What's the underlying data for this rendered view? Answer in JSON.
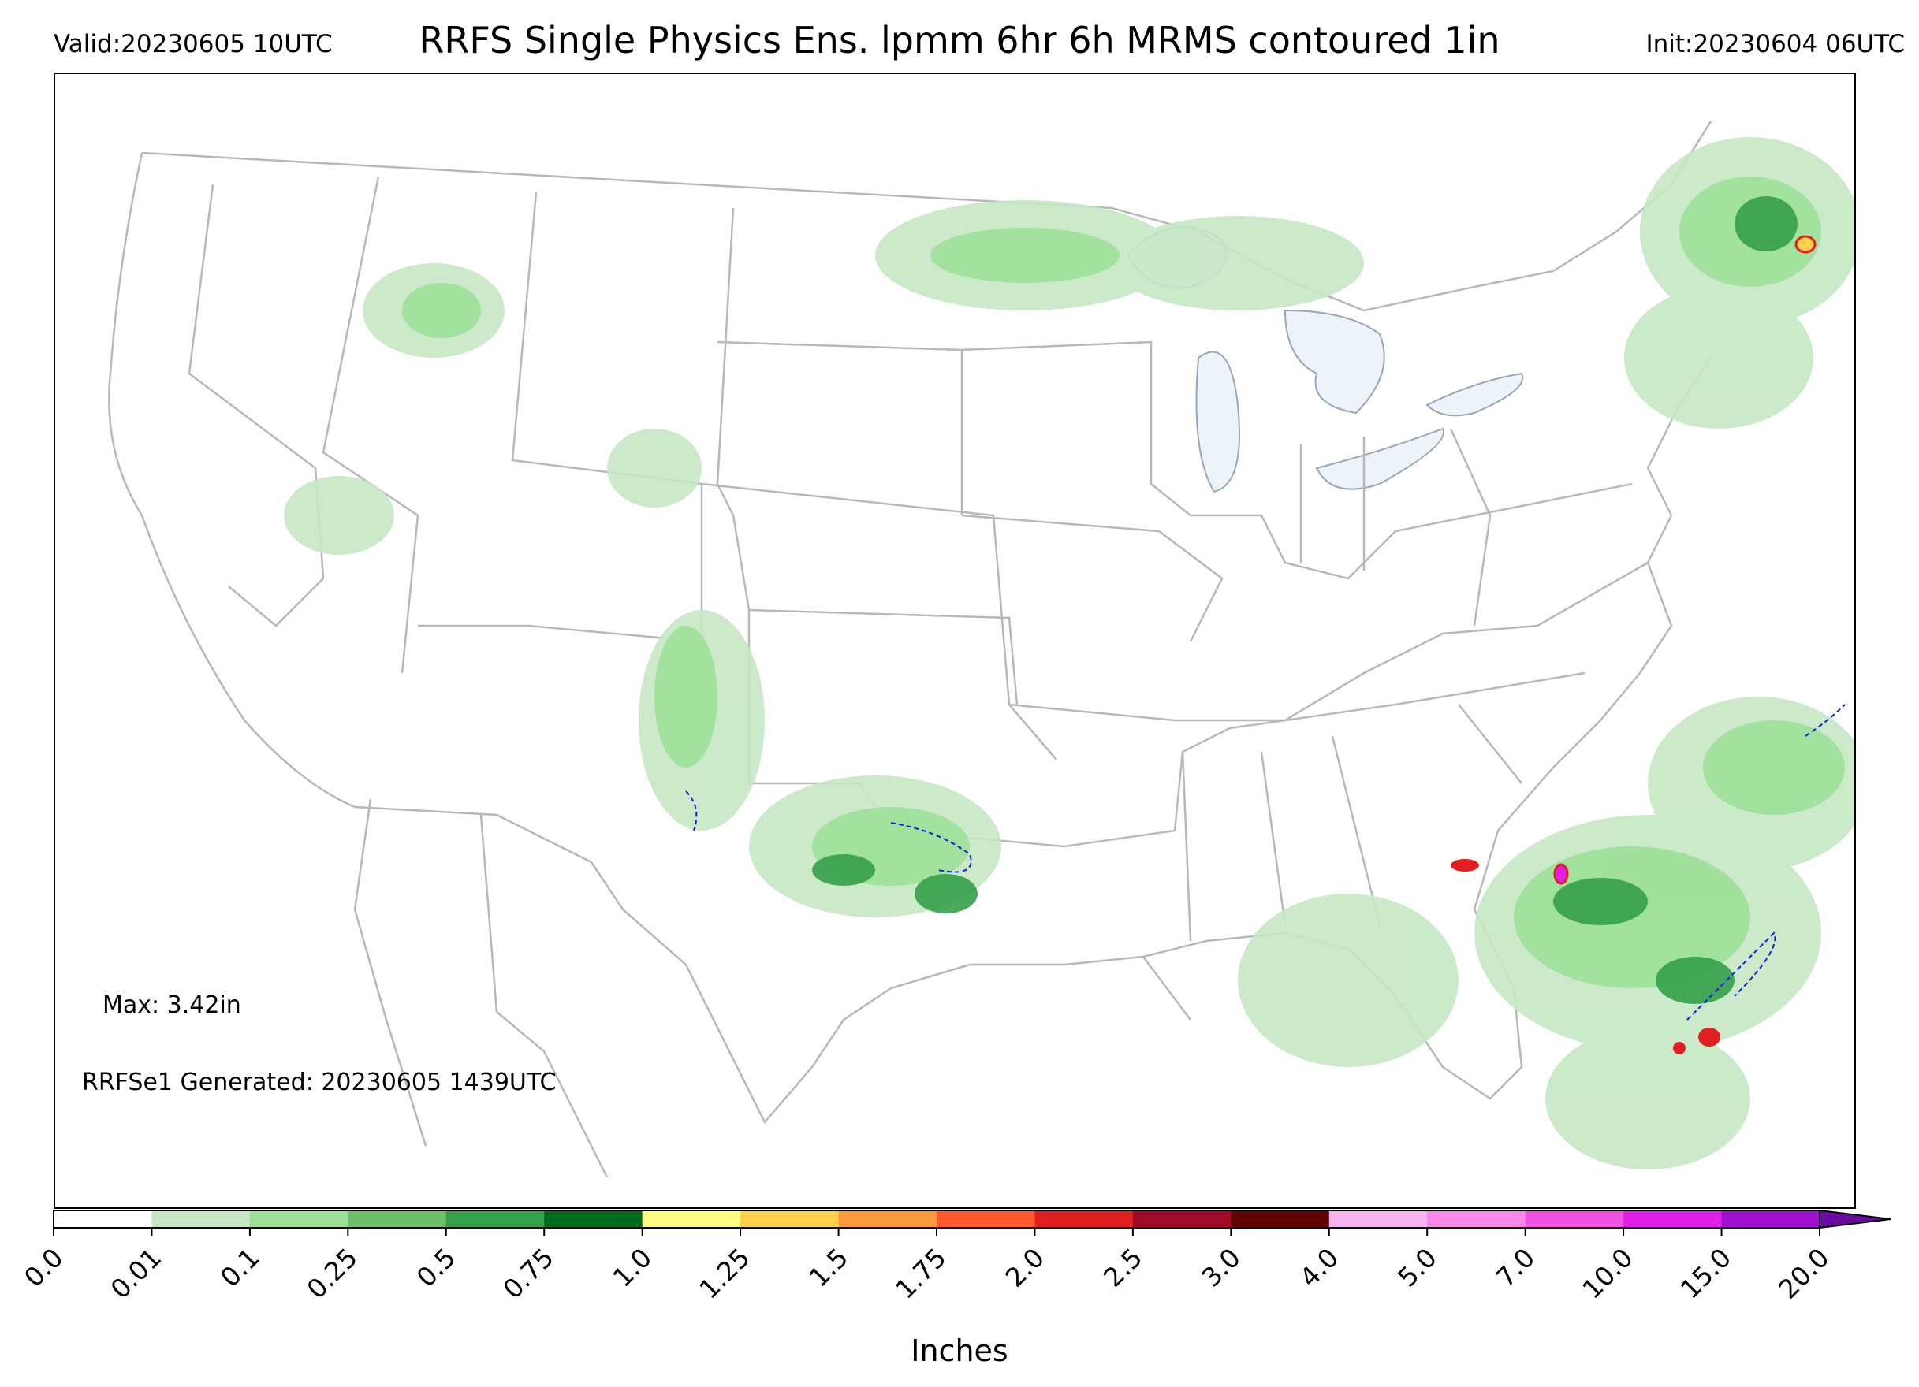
{
  "header": {
    "valid": "Valid:20230605 10UTC",
    "title": "RRFS Single Physics Ens. lpmm 6hr 6h MRMS contoured 1in",
    "init": "Init:20230604 06UTC"
  },
  "annotations": {
    "max": "Max: 3.42in",
    "generated": "RRFSe1 Generated: 20230605 1439UTC"
  },
  "colorbar": {
    "label": "Inches",
    "ticks": [
      "0.0",
      "0.01",
      "0.1",
      "0.25",
      "0.5",
      "0.75",
      "1.0",
      "1.25",
      "1.5",
      "1.75",
      "2.0",
      "2.5",
      "3.0",
      "4.0",
      "5.0",
      "7.0",
      "10.0",
      "15.0",
      "20.0"
    ],
    "colors": [
      "#ffffff",
      "#c6e8c4",
      "#9ee09a",
      "#6dbf6a",
      "#35a04a",
      "#006b1e",
      "#fffa80",
      "#ffd04a",
      "#ff9a3a",
      "#ff5a2e",
      "#e02020",
      "#a00a28",
      "#620000",
      "#f8b4f0",
      "#f888e8",
      "#f050e0",
      "#e020e8",
      "#a010d0"
    ],
    "extend_color": "#6a0aa0"
  },
  "map": {
    "region": "CONUS",
    "precip_colors": {
      "light": "#c6e8c4",
      "medium": "#9ee09a",
      "moderate": "#6dbf6a",
      "heavy": "#35a04a",
      "very_heavy": "#006b1e",
      "extreme": "#e02020",
      "peak": "#e020e8"
    },
    "mrms_contour_color": "#1020e0",
    "boundary_color": "#9a9a9a",
    "lake_color": "#eef3fa"
  }
}
